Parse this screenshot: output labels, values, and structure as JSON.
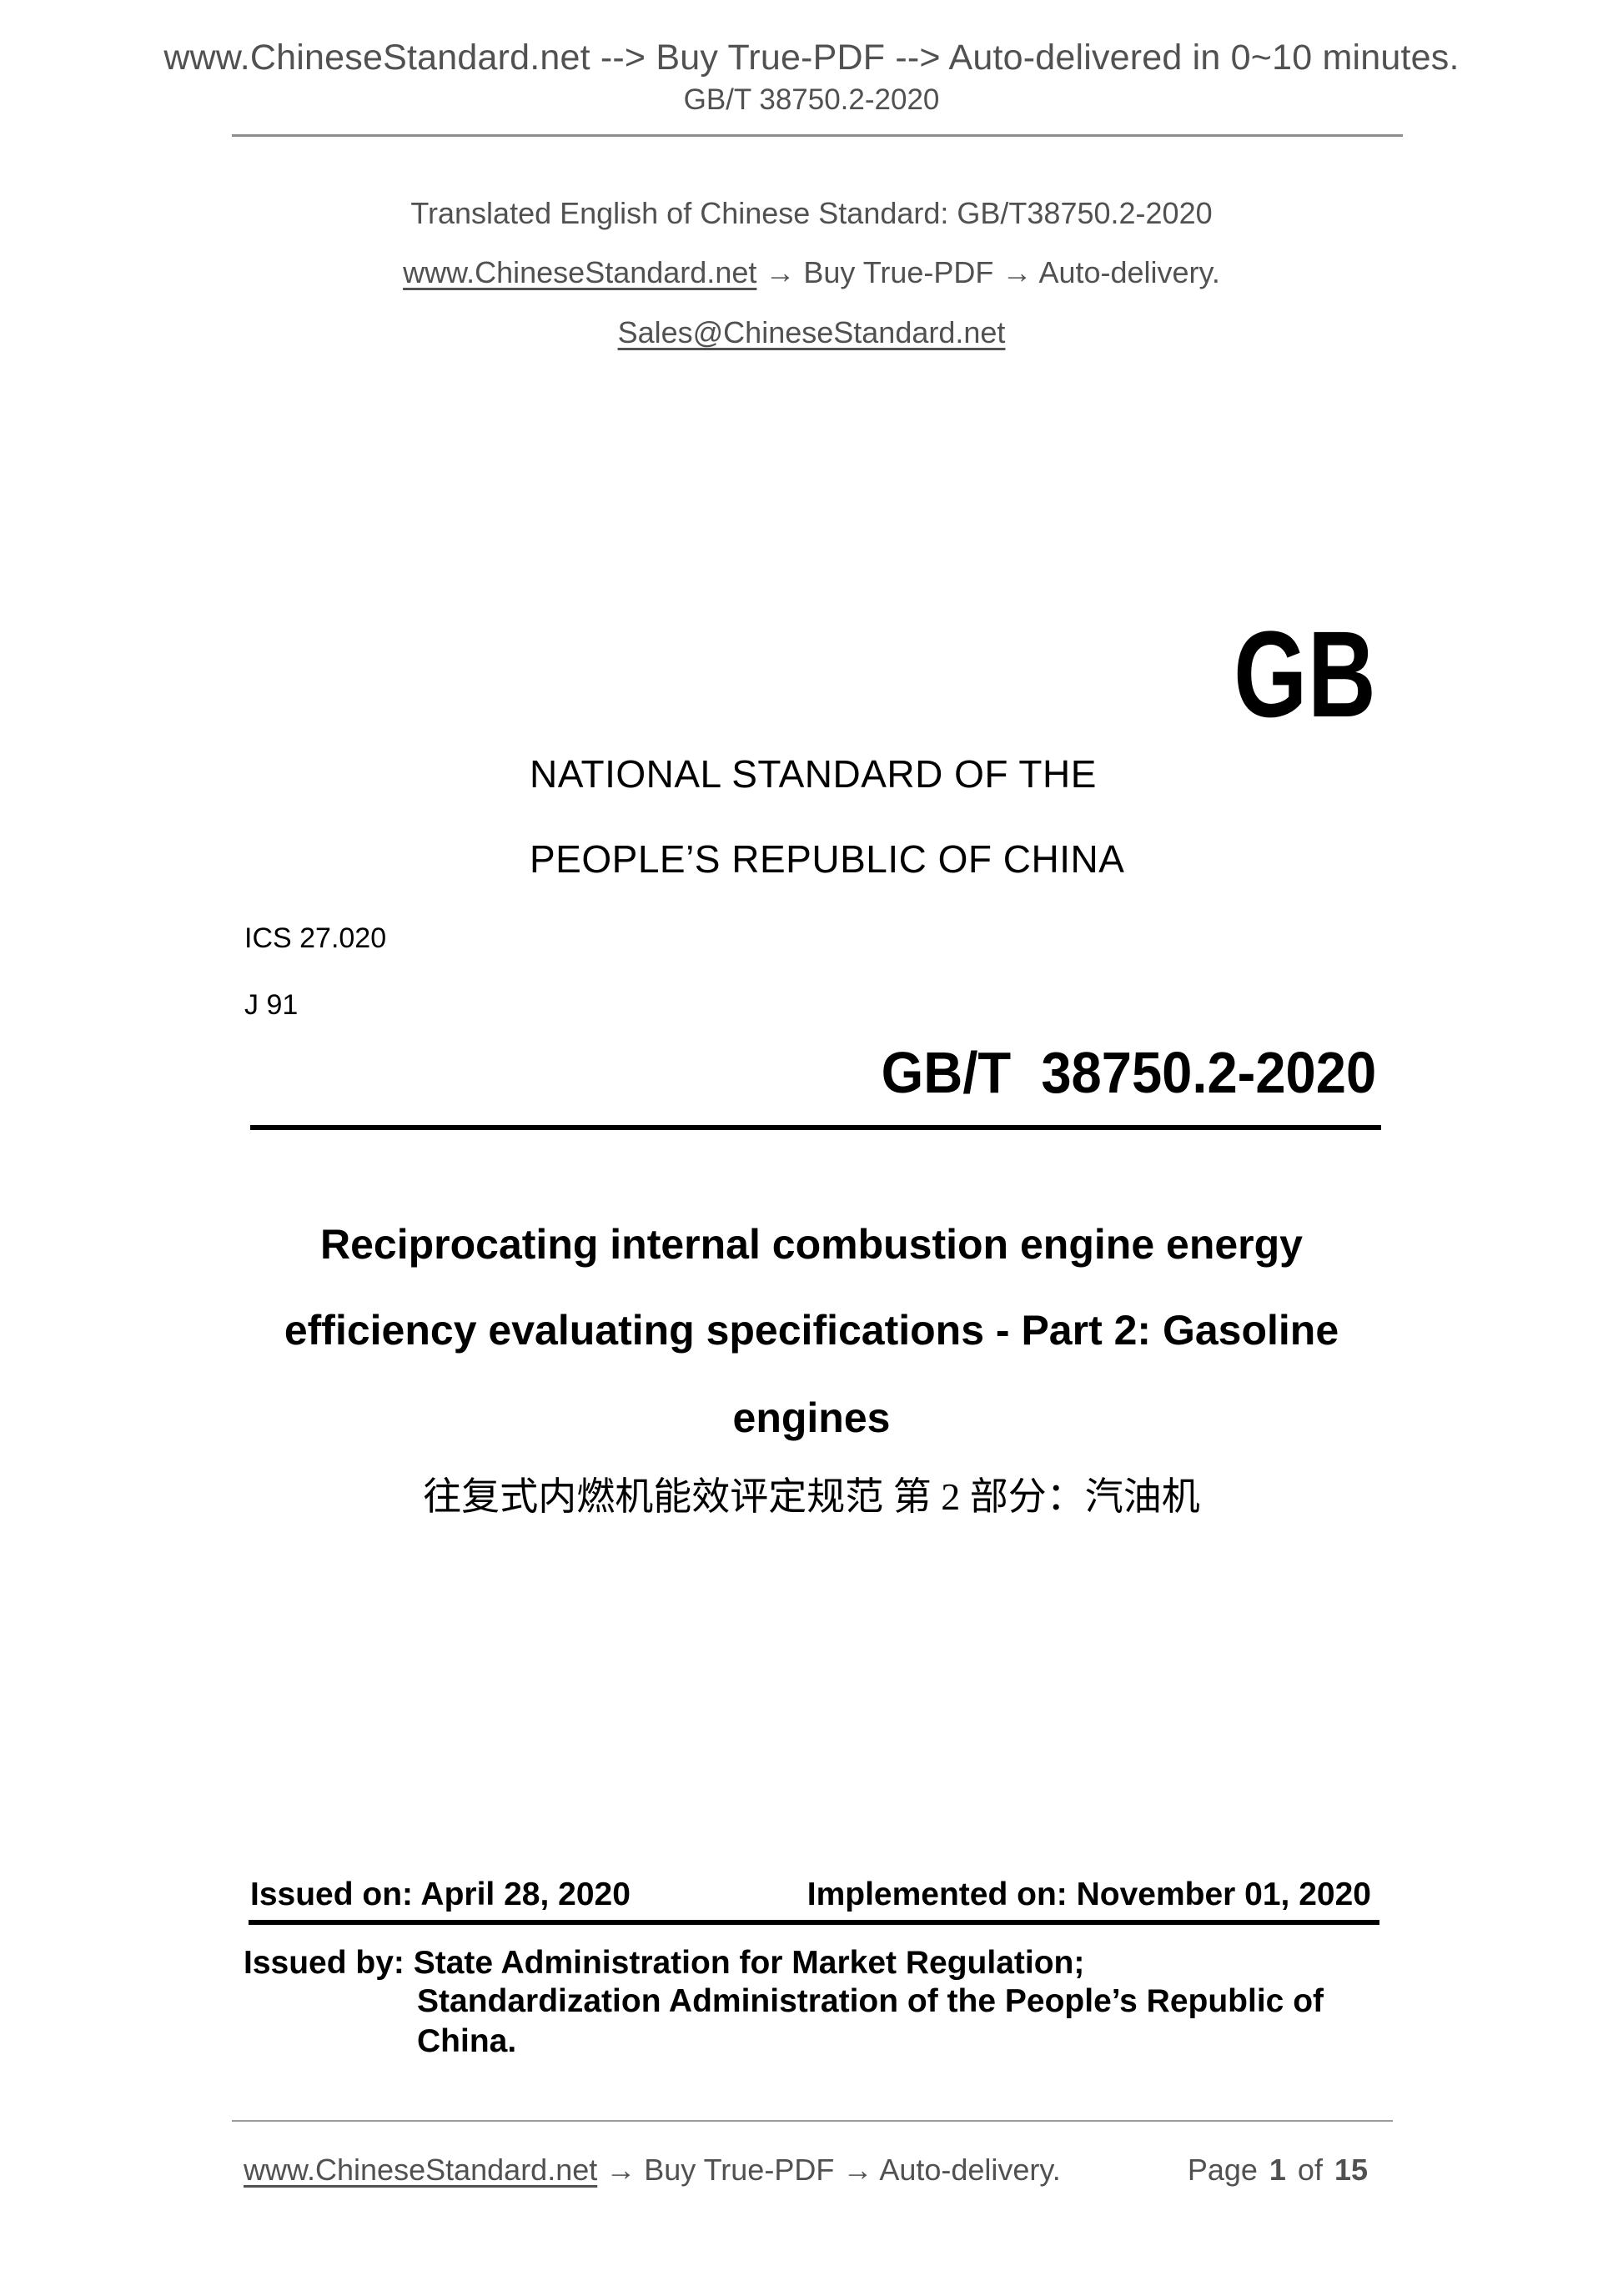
{
  "colors": {
    "muted_text": "#515151",
    "main_text": "#000000",
    "rule_gray": "#8c8c8c"
  },
  "page": {
    "header": {
      "note": "www.ChineseStandard.net --> Buy True-PDF --> Auto-delivered in 0~10 minutes.",
      "doc_number": "GB/T 38750.2-2020"
    },
    "translation_info": {
      "line1": "Translated English of Chinese Standard: GB/T38750.2-2020",
      "website_link": "www.ChineseStandard.net",
      "line2_rest": " → Buy True-PDF → Auto-delivery.",
      "email": "Sales@ChineseStandard.net"
    },
    "standard": {
      "logo": "GB",
      "org_line1": "NATIONAL STANDARD OF THE",
      "org_line2": "PEOPLE’S REPUBLIC OF CHINA",
      "ics": "ICS 27.020",
      "class_code": "J 91",
      "number": "GB/T  38750.2-2020",
      "title_en_line1": "Reciprocating internal combustion engine energy",
      "title_en_line2": "efficiency evaluating specifications - Part 2: Gasoline",
      "title_en_line3": "engines",
      "title_zh": "往复式内燃机能效评定规范 第 2 部分：汽油机"
    },
    "dates": {
      "issued": "Issued on: April 28, 2020",
      "implemented": "Implemented on: November 01, 2020"
    },
    "issuer": {
      "line1": "Issued by: State Administration for Market Regulation;",
      "line2": "Standardization Administration of the People’s Republic of",
      "line3": "China."
    },
    "footer": {
      "website_link": "www.ChineseStandard.net",
      "rest": " → Buy True-PDF → Auto-delivery.",
      "page_label": "Page",
      "page_current": "1",
      "page_of": "of",
      "page_total": "15"
    }
  }
}
